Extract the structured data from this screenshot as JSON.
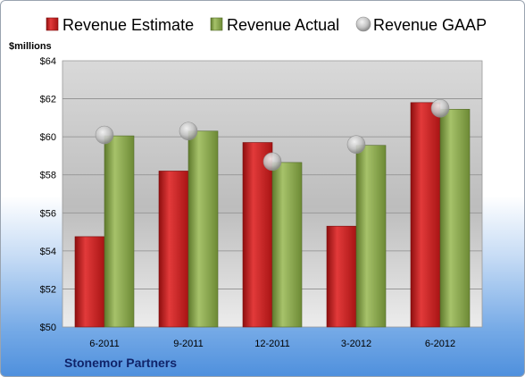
{
  "chart_data": {
    "type": "bar",
    "unit_label": "$millions",
    "categories": [
      "6-2011",
      "9-2011",
      "12-2011",
      "3-2012",
      "6-2012"
    ],
    "series": [
      {
        "name": "Revenue Estimate",
        "type": "bar",
        "color": "#cc1f1f",
        "values": [
          54.75,
          58.2,
          59.7,
          55.3,
          61.8
        ]
      },
      {
        "name": "Revenue Actual",
        "type": "bar",
        "color": "#8aa64a",
        "values": [
          60.05,
          60.3,
          58.65,
          59.55,
          61.45
        ]
      },
      {
        "name": "Revenue GAAP",
        "type": "scatter",
        "color": "#b0b0b0",
        "values": [
          60.1,
          60.3,
          58.7,
          59.6,
          61.5
        ]
      }
    ],
    "ylim": [
      50,
      64
    ],
    "yticks": [
      "$50",
      "$52",
      "$54",
      "$56",
      "$58",
      "$60",
      "$62",
      "$64"
    ],
    "grid": true,
    "legend_position": "top",
    "footer": "Stonemor Partners"
  }
}
